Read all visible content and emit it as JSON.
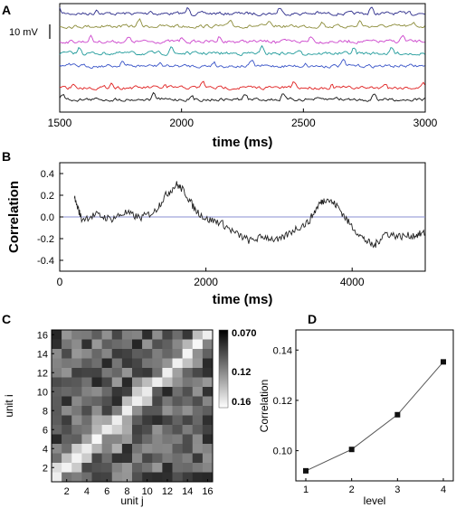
{
  "chart_data": [
    {
      "panel": "A",
      "type": "line",
      "xlabel": "time (ms)",
      "ylabel": "",
      "xlim": [
        1500,
        3000
      ],
      "x_ticks": [
        "1500",
        "2000",
        "2500",
        "3000"
      ],
      "scale_bar_label": "10 mV",
      "series": [
        {
          "color": "#2b2b8a"
        },
        {
          "color": "#8c8c3a"
        },
        {
          "color": "#cc44cc"
        },
        {
          "color": "#1f9a9a"
        },
        {
          "color": "#3a55c8"
        },
        {
          "color": "#e02020"
        },
        {
          "color": "#111111"
        }
      ]
    },
    {
      "panel": "B",
      "type": "line",
      "xlabel": "time (ms)",
      "ylabel": "Correlation",
      "xlim": [
        0,
        5000
      ],
      "ylim": [
        -0.5,
        0.5
      ],
      "x_ticks": [
        "0",
        "2000",
        "4000"
      ],
      "y_ticks": [
        "0.4",
        "0.2",
        "0.0",
        "-0.2",
        "-0.4"
      ],
      "reference_line": 0.0,
      "reference_color": "#8a8fd0",
      "series": [
        {
          "color": "#222222",
          "points": [
            [
              200,
              0.18
            ],
            [
              300,
              -0.02
            ],
            [
              500,
              0.02
            ],
            [
              700,
              -0.02
            ],
            [
              900,
              0.04
            ],
            [
              1100,
              -0.01
            ],
            [
              1300,
              0.05
            ],
            [
              1450,
              0.2
            ],
            [
              1600,
              0.3
            ],
            [
              1700,
              0.24
            ],
            [
              1850,
              0.07
            ],
            [
              2000,
              -0.02
            ],
            [
              2200,
              -0.05
            ],
            [
              2400,
              -0.15
            ],
            [
              2600,
              -0.22
            ],
            [
              2800,
              -0.18
            ],
            [
              3000,
              -0.22
            ],
            [
              3200,
              -0.12
            ],
            [
              3400,
              -0.05
            ],
            [
              3550,
              0.12
            ],
            [
              3650,
              0.17
            ],
            [
              3800,
              0.1
            ],
            [
              3950,
              -0.05
            ],
            [
              4150,
              -0.2
            ],
            [
              4300,
              -0.27
            ],
            [
              4450,
              -0.15
            ],
            [
              4650,
              -0.18
            ],
            [
              4850,
              -0.17
            ],
            [
              5000,
              -0.15
            ]
          ]
        }
      ]
    },
    {
      "panel": "C",
      "type": "heatmap",
      "xlabel": "unit j",
      "ylabel": "unit i",
      "x_ticks": [
        "2",
        "4",
        "6",
        "8",
        "10",
        "12",
        "14",
        "16"
      ],
      "y_ticks": [
        "2",
        "4",
        "6",
        "8",
        "10",
        "12",
        "14",
        "16"
      ],
      "colorbar_ticks": [
        "0.070",
        "0.12",
        "0.16"
      ],
      "colorbar_range": [
        0.07,
        0.16
      ]
    },
    {
      "panel": "D",
      "type": "line",
      "xlabel": "level",
      "ylabel": "Correlation",
      "x": [
        1,
        2,
        3,
        4
      ],
      "values": [
        0.092,
        0.1005,
        0.1143,
        0.1353
      ],
      "xlim": [
        1,
        4
      ],
      "ylim": [
        0.088,
        0.148
      ],
      "x_ticks": [
        "1",
        "2",
        "3",
        "4"
      ],
      "y_ticks": [
        "0.10",
        "0.12",
        "0.14"
      ]
    }
  ],
  "panel_labels": {
    "a": "A",
    "b": "B",
    "c": "C",
    "d": "D"
  }
}
